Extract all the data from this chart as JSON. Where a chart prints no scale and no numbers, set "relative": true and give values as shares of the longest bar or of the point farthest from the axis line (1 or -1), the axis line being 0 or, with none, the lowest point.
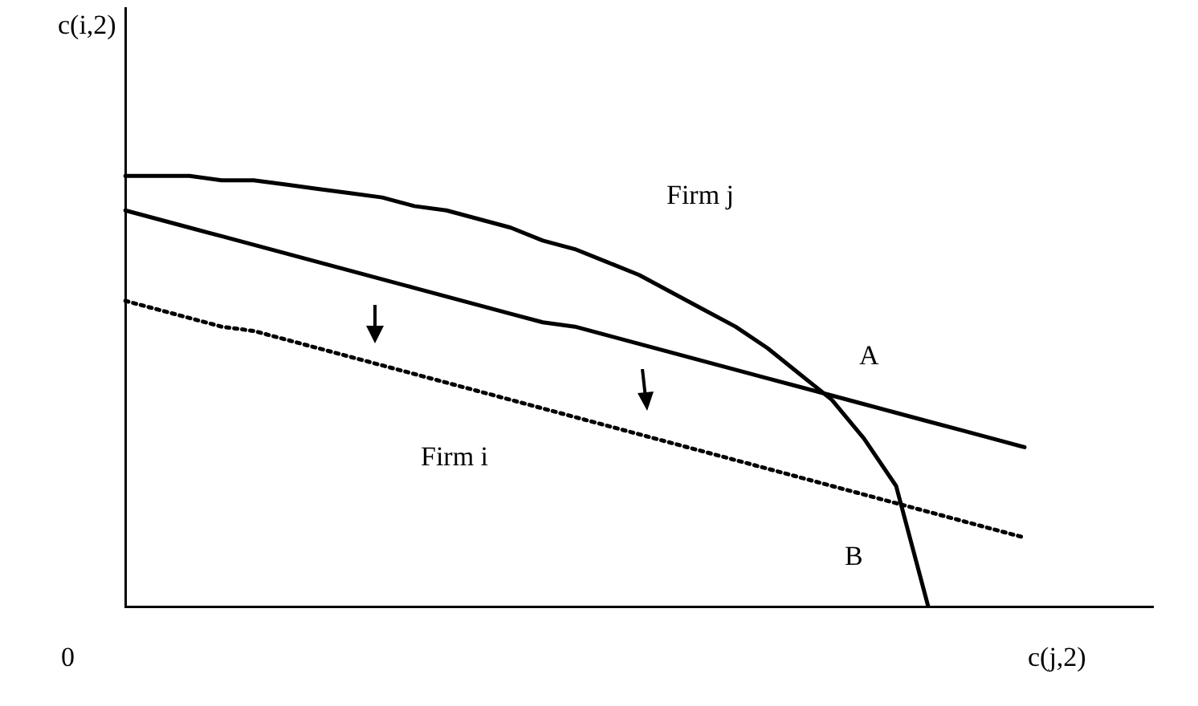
{
  "chart_data": {
    "type": "line",
    "relative": true,
    "xlabel": "c(j,2)",
    "ylabel": "c(i,2)",
    "marker": "none",
    "categories": [
      null,
      null,
      null,
      null,
      null,
      null,
      null,
      null,
      null,
      null,
      null,
      null,
      null,
      null,
      null,
      null,
      null,
      null,
      null,
      null,
      null,
      null,
      null,
      null,
      null,
      null,
      null,
      null,
      null,
      null,
      null,
      null,
      null
    ],
    "series": [
      {
        "color": "#000000",
        "line_style": "solid",
        "values": [
          1.0,
          1.0,
          1.0,
          0.99,
          0.99,
          0.98,
          0.97,
          0.96,
          0.95,
          0.93,
          0.92,
          0.9,
          0.88,
          0.85,
          0.83,
          0.8,
          0.77,
          0.73,
          0.69,
          0.65,
          0.6,
          0.54,
          0.48,
          0.39,
          0.28,
          0,
          null,
          null,
          null,
          null,
          null,
          null,
          null
        ]
      },
      {
        "color": "#000000",
        "line_style": "solid",
        "values": [
          0.92,
          0.9,
          0.88,
          0.86,
          0.84,
          0.82,
          0.8,
          0.78,
          0.76,
          0.74,
          0.72,
          0.7,
          0.68,
          0.66,
          0.65,
          0.63,
          0.61,
          0.59,
          0.57,
          0.55,
          0.53,
          0.51,
          0.49,
          0.47,
          0.45,
          0.43,
          0.41,
          0.39,
          0.37,
          null,
          null,
          null,
          null
        ]
      },
      {
        "color": "#000000",
        "line_style": "dotted",
        "values": [
          0.71,
          0.69,
          0.67,
          0.65,
          0.64,
          0.62,
          0.6,
          0.58,
          0.56,
          0.54,
          0.52,
          0.5,
          0.48,
          0.46,
          0.44,
          0.42,
          0.4,
          0.38,
          0.36,
          0.34,
          0.32,
          0.3,
          0.28,
          0.26,
          0.24,
          0.22,
          0.2,
          0.18,
          0.16,
          null,
          null,
          null,
          null
        ]
      }
    ],
    "annotations": [
      "0",
      "Firm j",
      "A",
      "Firm i",
      "B"
    ]
  }
}
